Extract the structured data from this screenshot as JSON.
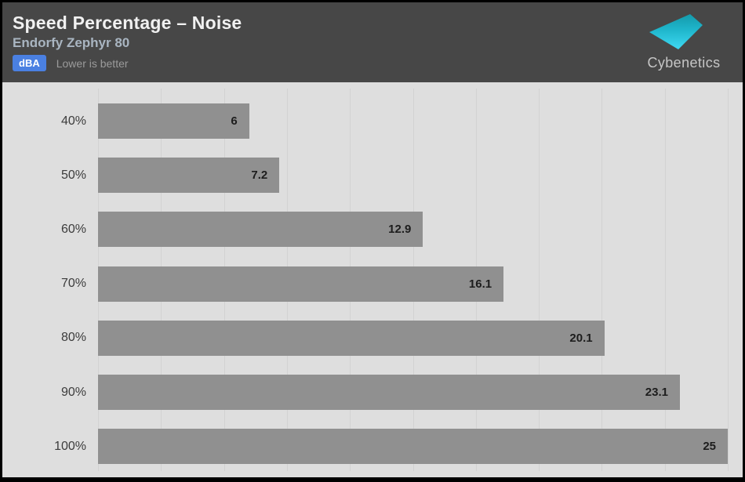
{
  "header": {
    "title": "Speed Percentage – Noise",
    "subtitle": "Endorfy Zephyr 80",
    "unit_badge": "dBA",
    "note": "Lower is better",
    "logo_text": "Cybenetics",
    "background_color": "#474747",
    "badge_color": "#4a80e2",
    "logo_cyan_top": "#149aab",
    "logo_cyan_bottom": "#3fd9f2"
  },
  "chart_data": {
    "type": "bar",
    "orientation": "horizontal",
    "title": "Speed Percentage – Noise",
    "subtitle": "Endorfy Zephyr 80",
    "unit": "dBA",
    "note": "Lower is better",
    "categories": [
      "40%",
      "50%",
      "60%",
      "70%",
      "80%",
      "90%",
      "100%"
    ],
    "values": [
      6,
      7.2,
      12.9,
      16.1,
      20.1,
      23.1,
      25
    ],
    "value_labels": [
      "6",
      "7.2",
      "12.9",
      "16.1",
      "20.1",
      "23.1",
      "25"
    ],
    "xlim": [
      0,
      25
    ],
    "gridline_step": 2.5,
    "grid": "vertical-lines",
    "legend": "none",
    "bar_color": "#909090",
    "plot_background": "#dedede",
    "category_label_color": "#3c3c3c",
    "value_label_color": "#1d1d1d"
  }
}
